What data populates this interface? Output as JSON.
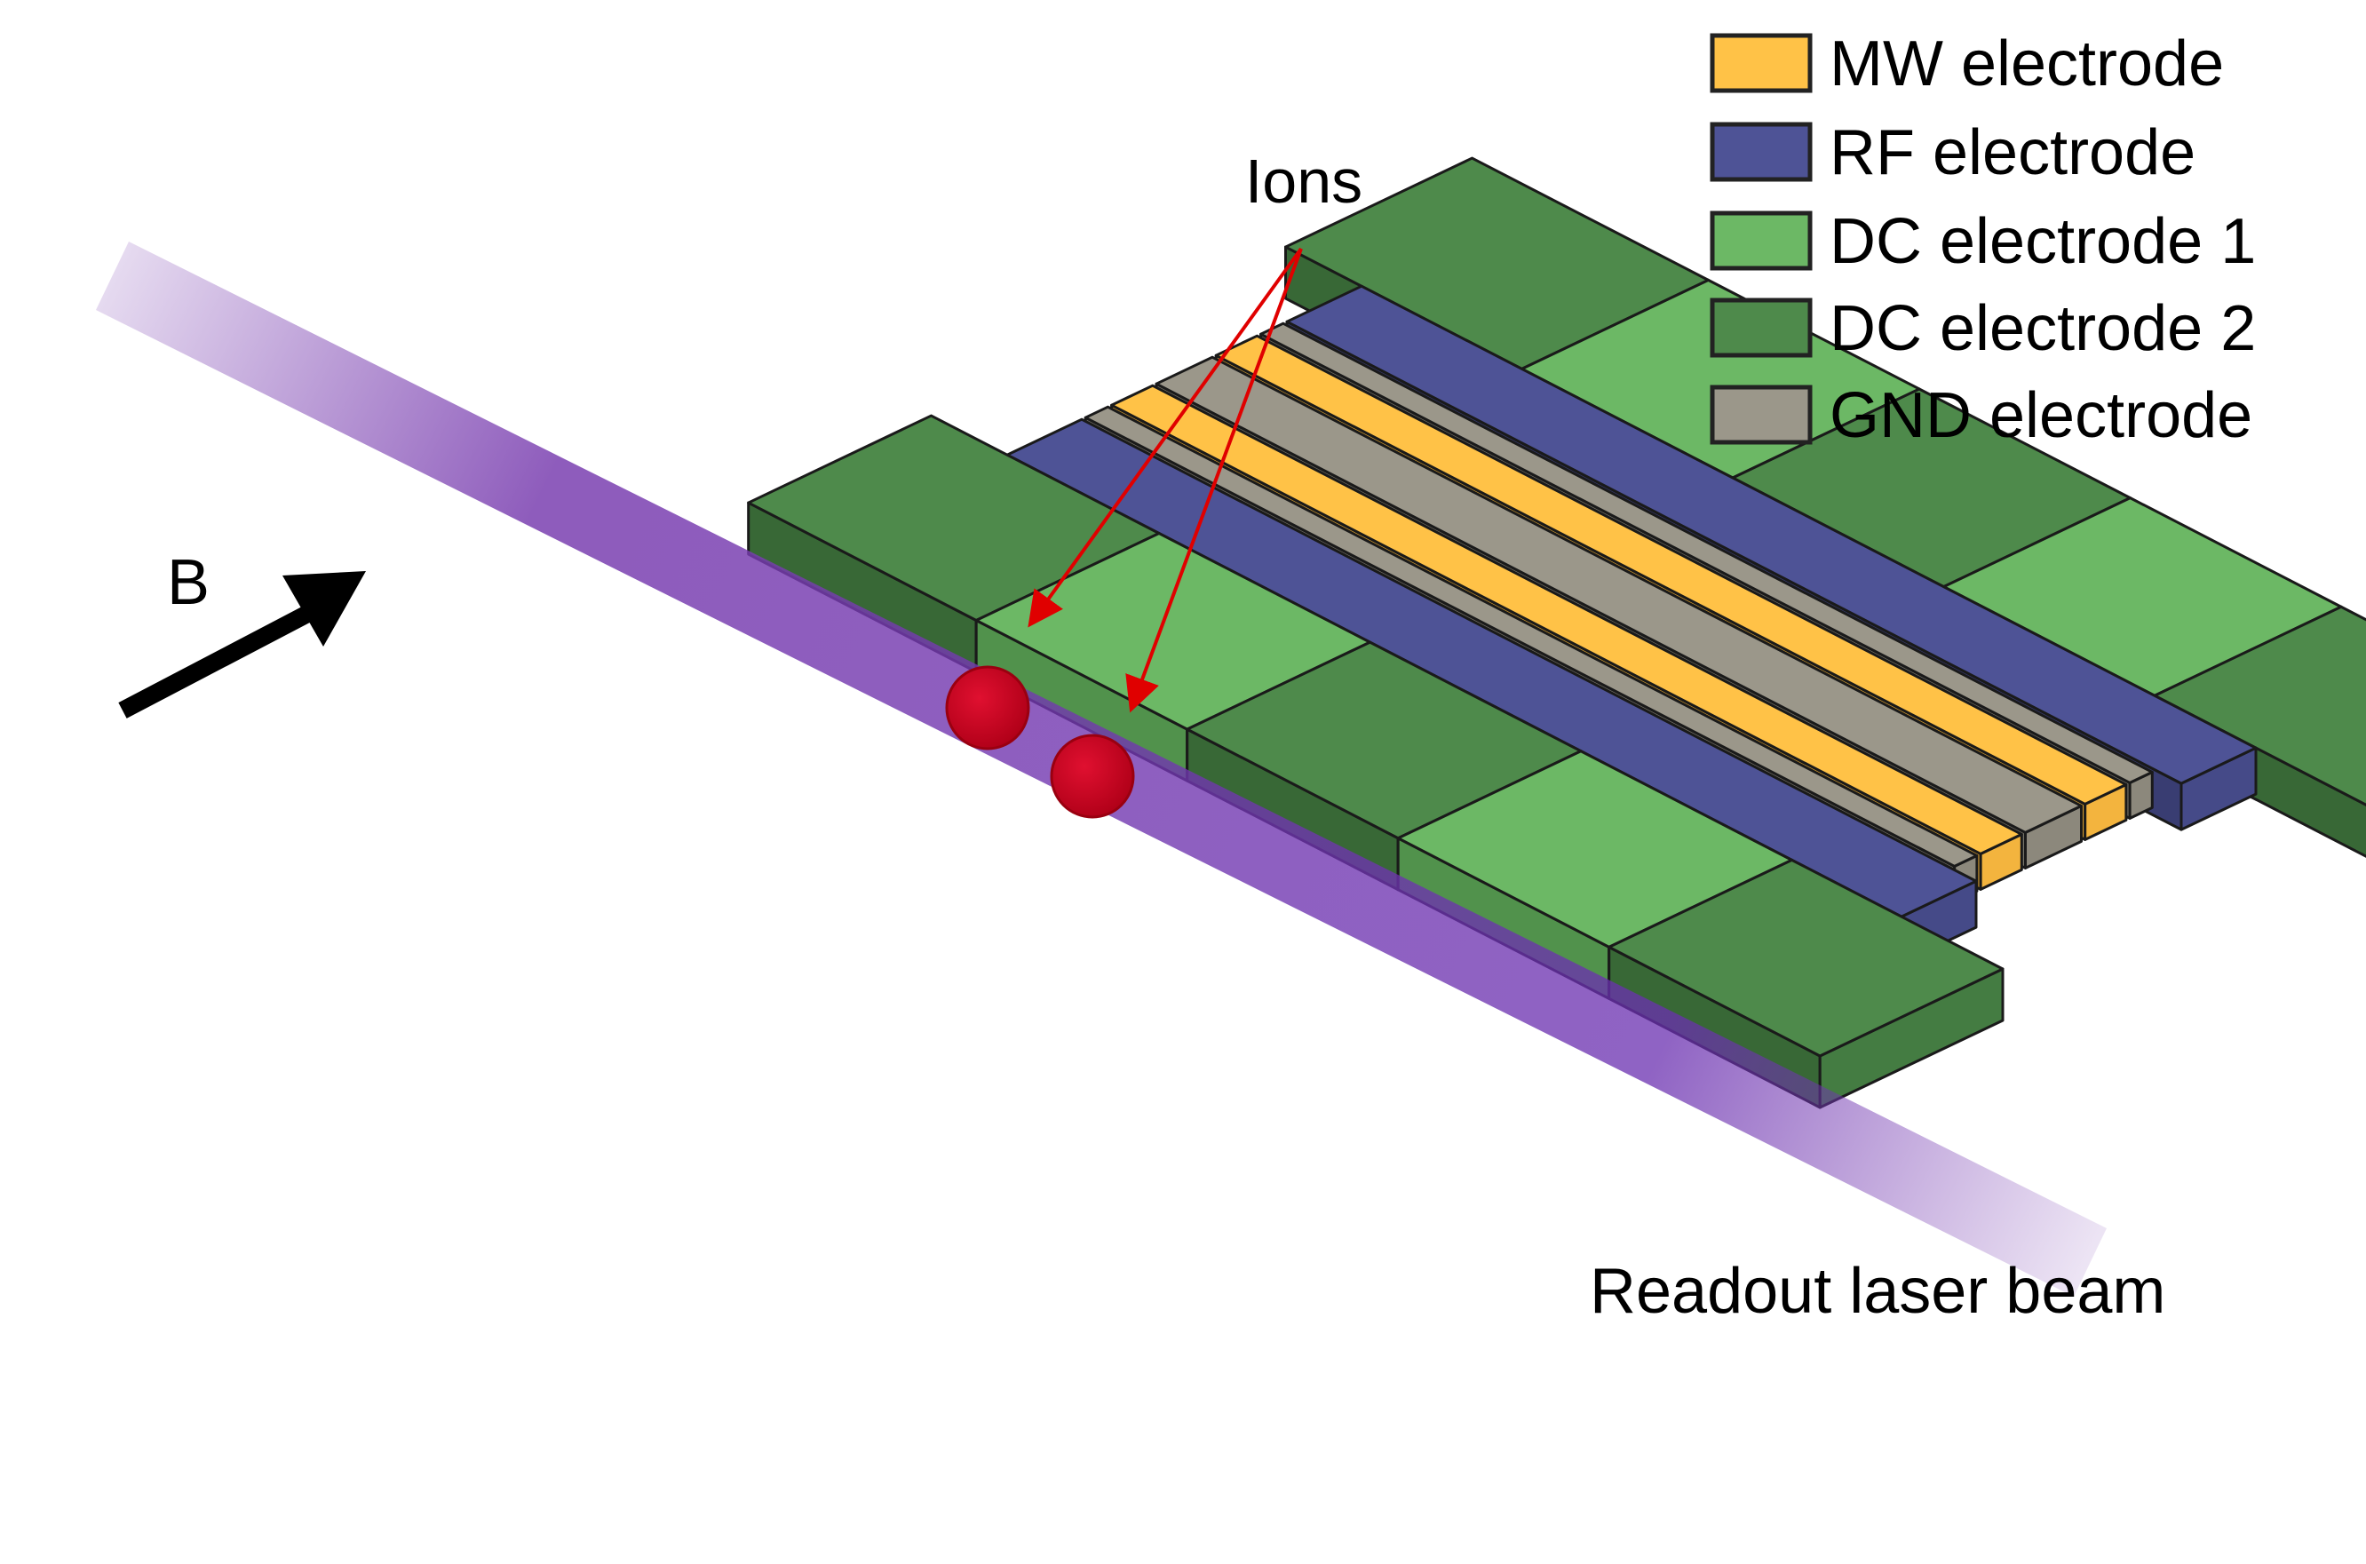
{
  "legend": {
    "items": [
      {
        "label": "MW electrode",
        "color": "#FFC247"
      },
      {
        "label": "RF electrode",
        "color": "#4E5396"
      },
      {
        "label": "DC electrode 1",
        "color": "#6CB865"
      },
      {
        "label": "DC electrode 2",
        "color": "#4E8A4B"
      },
      {
        "label": "GND electrode",
        "color": "#9B978A"
      }
    ]
  },
  "labels": {
    "ions": "Ions",
    "field": "B",
    "beam": "Readout laser beam"
  },
  "colors": {
    "ion": "#C40018",
    "pointer": "#E00000",
    "beam": "#7A3FB0"
  }
}
